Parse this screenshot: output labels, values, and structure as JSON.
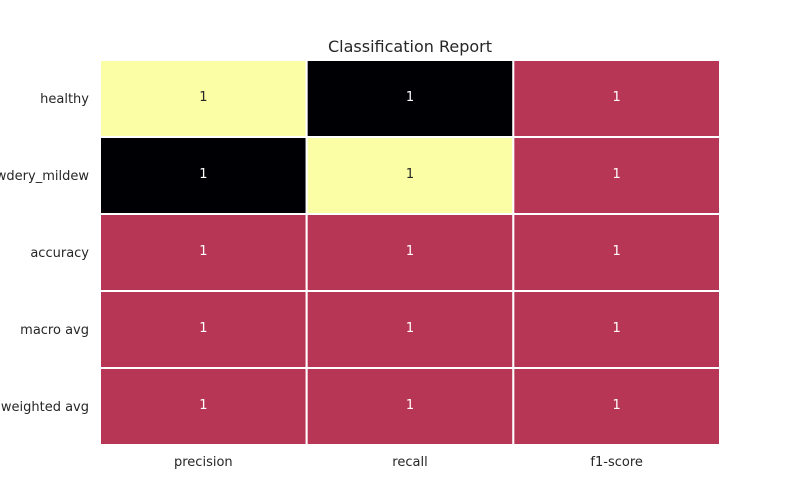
{
  "chart_data": {
    "type": "heatmap",
    "title": "Classification Report",
    "xlabel": "",
    "ylabel": "",
    "columns": [
      "precision",
      "recall",
      "f1-score"
    ],
    "rows": [
      "healthy",
      "powdery_mildew",
      "accuracy",
      "macro avg",
      "weighted avg"
    ],
    "values": [
      [
        0.998,
        0.992,
        0.995
      ],
      [
        0.992,
        0.998,
        0.995
      ],
      [
        0.995,
        0.995,
        0.995
      ],
      [
        0.995,
        0.995,
        0.995
      ],
      [
        0.995,
        0.995,
        0.995
      ]
    ],
    "annotations": [
      [
        "1",
        "1",
        "1"
      ],
      [
        "1",
        "1",
        "1"
      ],
      [
        "1",
        "1",
        "1"
      ],
      [
        "1",
        "1",
        "1"
      ],
      [
        "1",
        "1",
        "1"
      ]
    ],
    "colormap": "magma",
    "colorbar": false,
    "grid": false
  },
  "colors": {
    "low": "#000004",
    "mid": "#b73779",
    "high": "#fcfdbf",
    "cell_mid": "#b83655",
    "cell_low": "#000004",
    "cell_high": "#fbfea4",
    "cell_border": "#ffffff"
  }
}
